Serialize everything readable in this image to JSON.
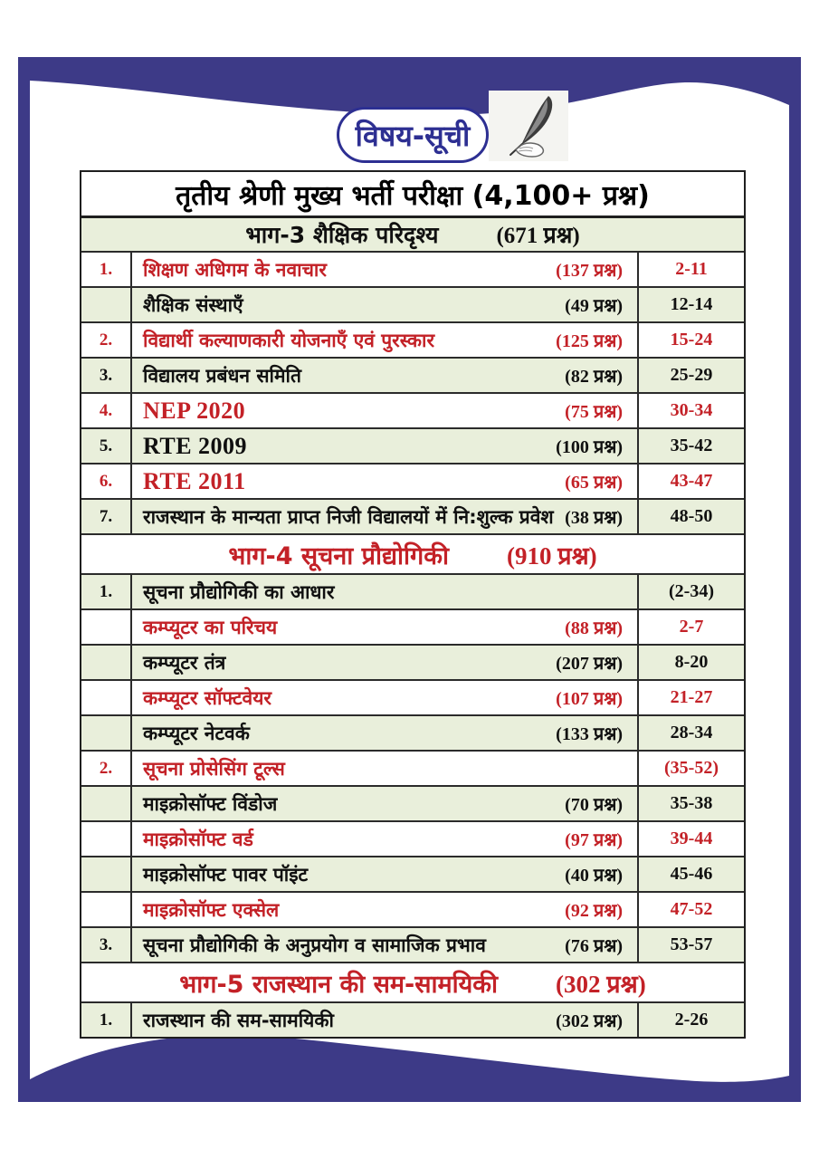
{
  "page": {
    "title": "विषय-सूची",
    "icons": {
      "title_icon": "quill-pen-in-hand"
    }
  },
  "colors": {
    "frame": "#3d3a87",
    "title_blue": "#2d2f92",
    "accent_red": "#c32127",
    "row_green": "#e9efdb",
    "border_dark": "#2b2b2b"
  },
  "table": {
    "main_header": "तृतीय श्रेणी मुख्य भर्ती परीक्षा (4,100+ प्रश्न)",
    "sections": [
      {
        "header": {
          "label": "भाग-3  शैक्षिक परिदृश्य",
          "count": "(671 प्रश्न)",
          "variant": "plain"
        },
        "rows": [
          {
            "sn": "1.",
            "title": "शिक्षण अधिगम के नवाचार",
            "count": "(137 प्रश्न)",
            "pages": "2-11",
            "variant": "red"
          },
          {
            "sn": "",
            "title": "शैक्षिक संस्थाएँ",
            "count": "(49 प्रश्न)",
            "pages": "12-14",
            "variant": "plain"
          },
          {
            "sn": "2.",
            "title": "विद्यार्थी कल्याणकारी योजनाएँ एवं पुरस्कार",
            "count": "(125 प्रश्न)",
            "pages": "15-24",
            "variant": "red"
          },
          {
            "sn": "3.",
            "title": "विद्यालय प्रबंधन समिति",
            "count": "(82 प्रश्न)",
            "pages": "25-29",
            "variant": "plain"
          },
          {
            "sn": "4.",
            "title": "NEP 2020",
            "count": "(75 प्रश्न)",
            "pages": "30-34",
            "variant": "red",
            "latin": true
          },
          {
            "sn": "5.",
            "title": "RTE 2009",
            "count": "(100 प्रश्न)",
            "pages": "35-42",
            "variant": "plain",
            "latin": true
          },
          {
            "sn": "6.",
            "title": "RTE 2011",
            "count": "(65 प्रश्न)",
            "pages": "43-47",
            "variant": "red",
            "latin": true
          },
          {
            "sn": "7.",
            "title": "राजस्थान के मान्यता प्राप्त निजी विद्यालयों में नि:शुल्क प्रवेश",
            "count": "(38 प्रश्न)",
            "pages": "48-50",
            "variant": "plain"
          }
        ]
      },
      {
        "header": {
          "label": "भाग-4 सूचना प्रौद्योगिकी",
          "count": "(910 प्रश्न)",
          "variant": "red"
        },
        "rows": [
          {
            "sn": "1.",
            "title": "सूचना प्रौद्योगिकी का आधार",
            "count": "",
            "pages": "(2-34)",
            "variant": "plain"
          },
          {
            "sn": "",
            "title": "कम्प्यूटर का परिचय",
            "count": "(88 प्रश्न)",
            "pages": "2-7",
            "variant": "red"
          },
          {
            "sn": "",
            "title": "कम्प्यूटर तंत्र",
            "count": "(207 प्रश्न)",
            "pages": "8-20",
            "variant": "plain"
          },
          {
            "sn": "",
            "title": "कम्प्यूटर सॉफ्टवेयर",
            "count": "(107 प्रश्न)",
            "pages": "21-27",
            "variant": "red"
          },
          {
            "sn": "",
            "title": "कम्प्यूटर नेटवर्क",
            "count": "(133 प्रश्न)",
            "pages": "28-34",
            "variant": "plain"
          },
          {
            "sn": "2.",
            "title": "सूचना प्रोसेसिंग टूल्स",
            "count": "",
            "pages": "(35-52)",
            "variant": "red"
          },
          {
            "sn": "",
            "title": "माइक्रोसॉफ्ट विंडोज",
            "count": "(70 प्रश्न)",
            "pages": "35-38",
            "variant": "plain"
          },
          {
            "sn": "",
            "title": "माइक्रोसॉफ्ट वर्ड",
            "count": "(97 प्रश्न)",
            "pages": "39-44",
            "variant": "red"
          },
          {
            "sn": "",
            "title": "माइक्रोसॉफ्ट पावर पॉइंट",
            "count": "(40 प्रश्न)",
            "pages": "45-46",
            "variant": "plain"
          },
          {
            "sn": "",
            "title": "माइक्रोसॉफ्ट एक्सेल",
            "count": "(92 प्रश्न)",
            "pages": "47-52",
            "variant": "red"
          },
          {
            "sn": "3.",
            "title": "सूचना प्रौद्योगिकी के अनुप्रयोग व सामाजिक प्रभाव",
            "count": "(76 प्रश्न)",
            "pages": "53-57",
            "variant": "plain"
          }
        ]
      },
      {
        "header": {
          "label": "भाग-5 राजस्थान की सम-सामयिकी",
          "count": "(302 प्रश्न)",
          "variant": "red"
        },
        "rows": [
          {
            "sn": "1.",
            "title": "राजस्थान की सम-सामयिकी",
            "count": "(302 प्रश्न)",
            "pages": "2-26",
            "variant": "plain"
          }
        ]
      }
    ]
  }
}
